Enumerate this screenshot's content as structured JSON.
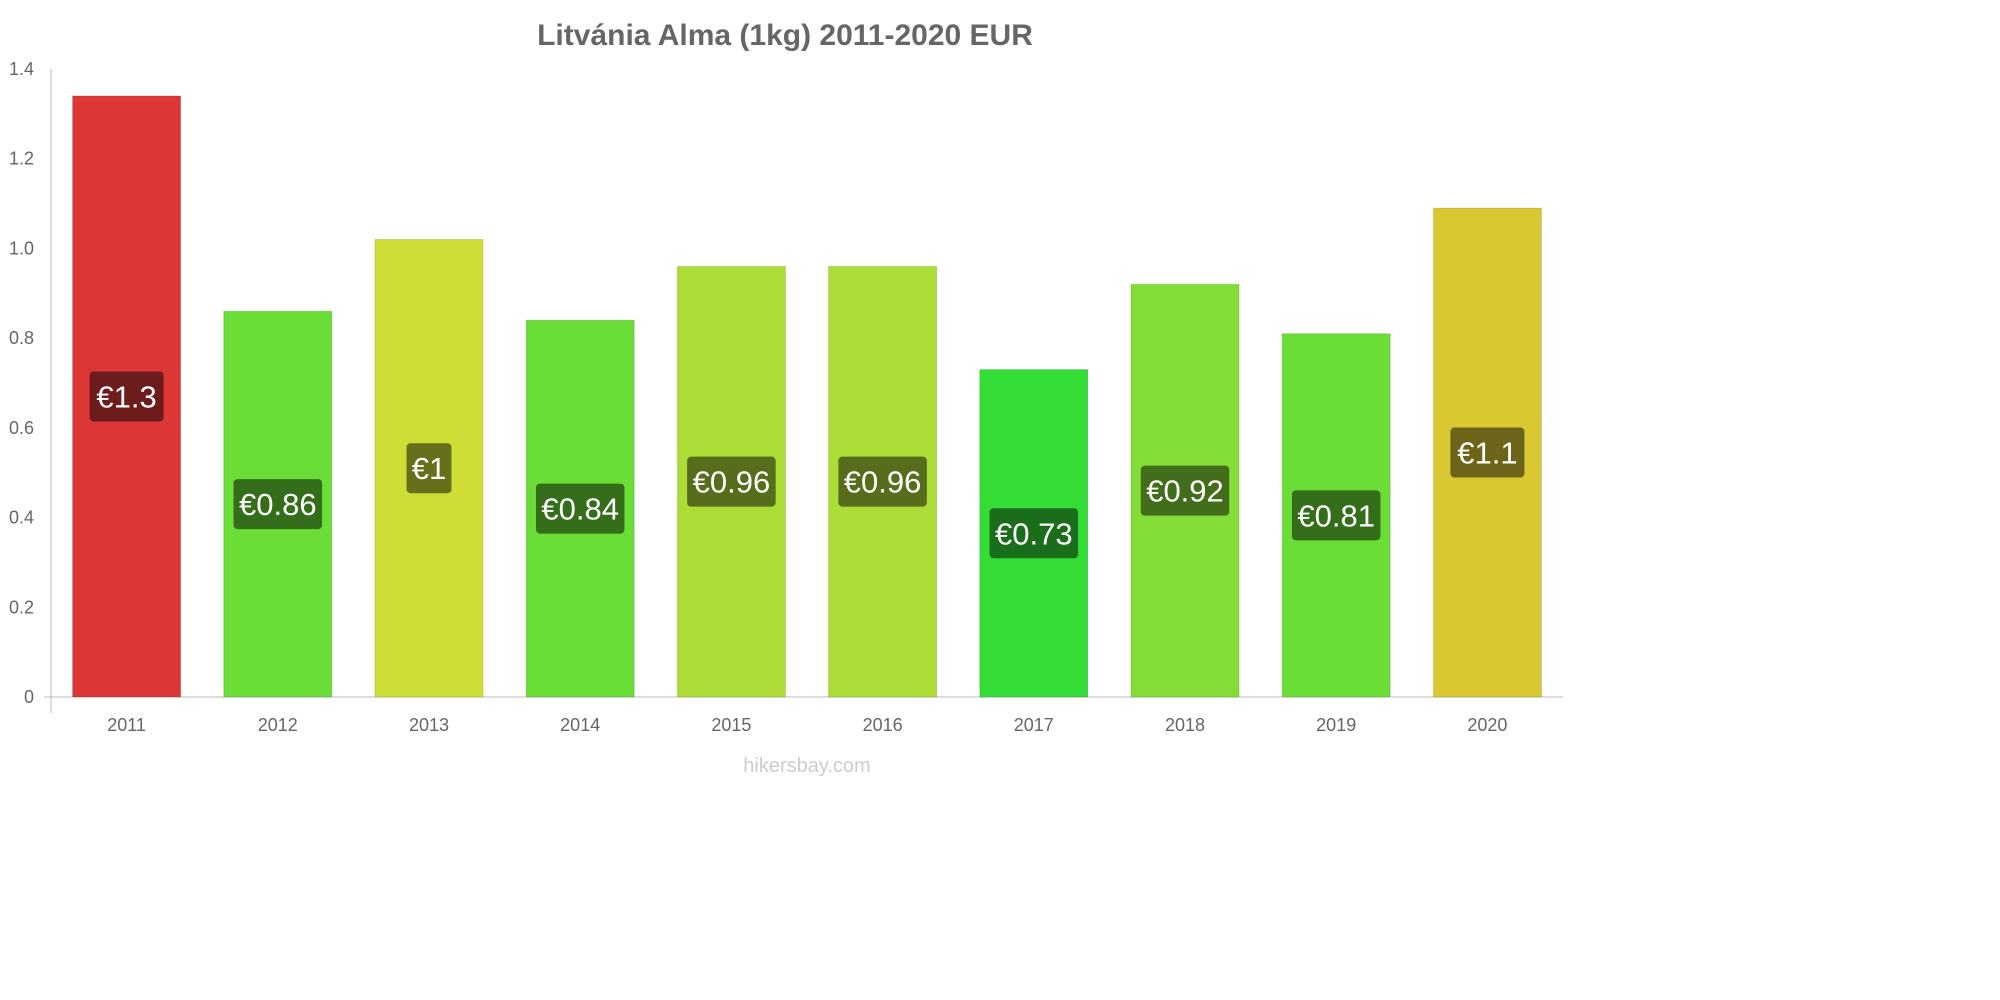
{
  "chart_data": {
    "type": "bar",
    "title": "Litvánia Alma (1kg) 2011-2020 EUR",
    "xlabel": "",
    "ylabel": "",
    "categories": [
      "2011",
      "2012",
      "2013",
      "2014",
      "2015",
      "2016",
      "2017",
      "2018",
      "2019",
      "2020"
    ],
    "values": [
      1.34,
      0.86,
      1.02,
      0.84,
      0.96,
      0.96,
      0.73,
      0.92,
      0.81,
      1.09
    ],
    "data_labels": [
      "€1.3",
      "€0.86",
      "€1",
      "€0.84",
      "€0.96",
      "€0.96",
      "€0.73",
      "€0.92",
      "€0.81",
      "€1.1"
    ],
    "bar_colors": [
      "#dd3636",
      "#6add36",
      "#cfde36",
      "#6add36",
      "#abdd36",
      "#abdd36",
      "#33dd36",
      "#84dd36",
      "#6add36",
      "#d9c832"
    ],
    "label_colors": [
      "#6e1b1b",
      "#356e1b",
      "#686f1b",
      "#356e1b",
      "#566e1b",
      "#566e1b",
      "#1a6e1b",
      "#426e1b",
      "#356e1b",
      "#6c6419"
    ],
    "ylim": [
      0,
      1.4
    ],
    "yticks": [
      "0",
      "0.2",
      "0.4",
      "0.6",
      "0.8",
      "1.0",
      "1.2",
      "1.4"
    ],
    "grid": false,
    "legend": "none"
  },
  "watermark": "hikersbay.com"
}
